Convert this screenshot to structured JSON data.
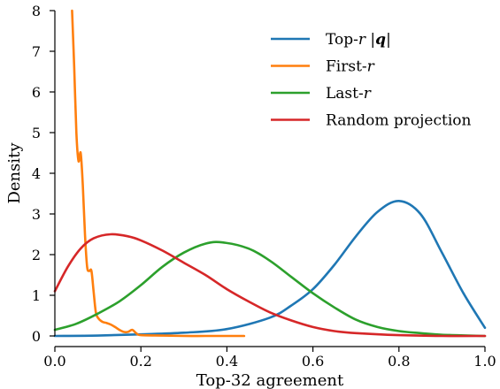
{
  "chart_data": {
    "type": "line",
    "xlabel": "Top-32 agreement",
    "ylabel": "Density",
    "xlim": [
      0.0,
      1.0
    ],
    "ylim": [
      0,
      8
    ],
    "xticks": [
      0.0,
      0.2,
      0.4,
      0.6,
      0.8,
      1.0
    ],
    "xtick_labels": [
      "0.0",
      "0.2",
      "0.4",
      "0.6",
      "0.8",
      "1.0"
    ],
    "yticks": [
      0,
      1,
      2,
      3,
      4,
      5,
      6,
      7,
      8
    ],
    "ytick_labels": [
      "0",
      "1",
      "2",
      "3",
      "4",
      "5",
      "6",
      "7",
      "8"
    ],
    "grid": false,
    "legend_position": "top-right",
    "series": [
      {
        "name": "Top-r |q|",
        "name_parts": [
          "Top-",
          "r",
          " |",
          "q",
          "|"
        ],
        "color": "#1f77b4",
        "x": [
          0.0,
          0.1,
          0.2,
          0.3,
          0.4,
          0.5,
          0.55,
          0.6,
          0.65,
          0.7,
          0.75,
          0.8,
          0.85,
          0.9,
          0.95,
          1.0
        ],
        "y": [
          0.0,
          0.01,
          0.04,
          0.08,
          0.17,
          0.45,
          0.75,
          1.15,
          1.75,
          2.45,
          3.05,
          3.32,
          3.0,
          2.05,
          1.05,
          0.2
        ]
      },
      {
        "name": "First-r",
        "name_parts": [
          "First-",
          "r"
        ],
        "color": "#ff7f0e",
        "x": [
          0.04,
          0.045,
          0.05,
          0.055,
          0.06,
          0.065,
          0.07,
          0.075,
          0.08,
          0.085,
          0.09,
          0.095,
          0.1,
          0.11,
          0.12,
          0.13,
          0.14,
          0.15,
          0.16,
          0.17,
          0.18,
          0.19,
          0.2,
          0.25,
          0.3,
          0.35,
          0.4,
          0.44
        ],
        "y": [
          8.0,
          6.6,
          5.0,
          4.3,
          4.5,
          3.7,
          2.5,
          1.7,
          1.6,
          1.6,
          1.1,
          0.6,
          0.45,
          0.35,
          0.32,
          0.28,
          0.22,
          0.15,
          0.1,
          0.1,
          0.15,
          0.06,
          0.02,
          0.01,
          0.0,
          0.0,
          0.0,
          0.0
        ]
      },
      {
        "name": "Last-r",
        "name_parts": [
          "Last-",
          "r"
        ],
        "color": "#2ca02c",
        "x": [
          0.0,
          0.05,
          0.1,
          0.15,
          0.2,
          0.25,
          0.3,
          0.35,
          0.39,
          0.45,
          0.5,
          0.55,
          0.6,
          0.65,
          0.7,
          0.75,
          0.8,
          0.85,
          0.9,
          1.0
        ],
        "y": [
          0.15,
          0.3,
          0.55,
          0.85,
          1.25,
          1.7,
          2.05,
          2.27,
          2.3,
          2.15,
          1.85,
          1.45,
          1.05,
          0.7,
          0.4,
          0.22,
          0.12,
          0.07,
          0.03,
          0.0
        ]
      },
      {
        "name": "Random projection",
        "name_parts": [
          "Random projection"
        ],
        "color": "#d62728",
        "x": [
          0.0,
          0.03,
          0.06,
          0.09,
          0.13,
          0.17,
          0.2,
          0.25,
          0.3,
          0.35,
          0.4,
          0.45,
          0.5,
          0.55,
          0.6,
          0.65,
          0.7,
          0.8,
          0.9,
          1.0
        ],
        "y": [
          1.1,
          1.7,
          2.15,
          2.4,
          2.5,
          2.45,
          2.35,
          2.1,
          1.8,
          1.5,
          1.15,
          0.85,
          0.58,
          0.38,
          0.22,
          0.12,
          0.07,
          0.02,
          0.0,
          0.0
        ]
      }
    ]
  }
}
